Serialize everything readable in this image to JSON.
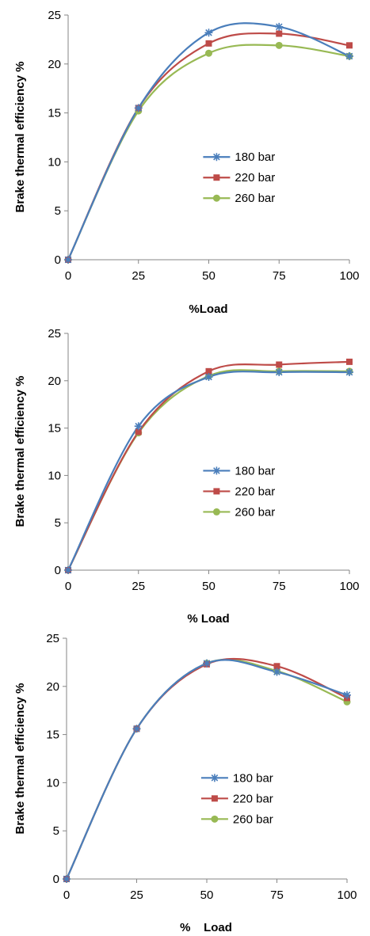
{
  "colors": {
    "180 bar": "#4A7EBB",
    "220 bar": "#BE4B48",
    "260 bar": "#98B954",
    "axis": "#868686"
  },
  "icons": {
    "180 bar": "star-marker",
    "220 bar": "square-marker",
    "260 bar": "circle-marker"
  },
  "chart_data": [
    {
      "type": "line",
      "xlabel": "%Load",
      "ylabel": "Brake thermal efficiency %",
      "xlim": [
        0,
        100
      ],
      "ylim": [
        0,
        25
      ],
      "x_ticks": [
        0,
        25,
        50,
        75,
        100
      ],
      "y_ticks": [
        0,
        5,
        10,
        15,
        20,
        25
      ],
      "legend_placement": "right-middle",
      "grid": false,
      "x": [
        0,
        25,
        50,
        75,
        100
      ],
      "series": [
        {
          "name": "180 bar",
          "values": [
            0,
            15.5,
            23.2,
            23.8,
            20.8
          ]
        },
        {
          "name": "220 bar",
          "values": [
            0,
            15.5,
            22.1,
            23.1,
            21.9
          ]
        },
        {
          "name": "260 bar",
          "values": [
            0,
            15.2,
            21.1,
            21.9,
            20.8
          ]
        }
      ]
    },
    {
      "type": "line",
      "xlabel": "% Load",
      "ylabel": "Brake thermal efficiency %",
      "xlim": [
        0,
        100
      ],
      "ylim": [
        0,
        25
      ],
      "x_ticks": [
        0,
        25,
        50,
        75,
        100
      ],
      "y_ticks": [
        0,
        5,
        10,
        15,
        20,
        25
      ],
      "legend_placement": "right-middle",
      "grid": false,
      "x": [
        0,
        25,
        50,
        75,
        100
      ],
      "series": [
        {
          "name": "180 bar",
          "values": [
            0,
            15.2,
            20.4,
            20.9,
            20.9
          ]
        },
        {
          "name": "220 bar",
          "values": [
            0,
            14.6,
            21.0,
            21.7,
            22.0
          ]
        },
        {
          "name": "260 bar",
          "values": [
            0,
            14.5,
            20.5,
            21.0,
            21.0
          ]
        }
      ]
    },
    {
      "type": "line",
      "xlabel": "%    Load",
      "ylabel": "Brake thermal efficiency %",
      "xlim": [
        0,
        100
      ],
      "ylim": [
        0,
        25
      ],
      "x_ticks": [
        0,
        25,
        50,
        75,
        100
      ],
      "y_ticks": [
        0,
        5,
        10,
        15,
        20,
        25
      ],
      "legend_placement": "right-middle",
      "grid": false,
      "x": [
        0,
        25,
        50,
        75,
        100
      ],
      "series": [
        {
          "name": "180 bar",
          "values": [
            0,
            15.6,
            22.4,
            21.5,
            19.1
          ]
        },
        {
          "name": "220 bar",
          "values": [
            0,
            15.6,
            22.3,
            22.1,
            18.8
          ]
        },
        {
          "name": "260 bar",
          "values": [
            0,
            15.6,
            22.4,
            21.6,
            18.4
          ]
        }
      ]
    }
  ]
}
